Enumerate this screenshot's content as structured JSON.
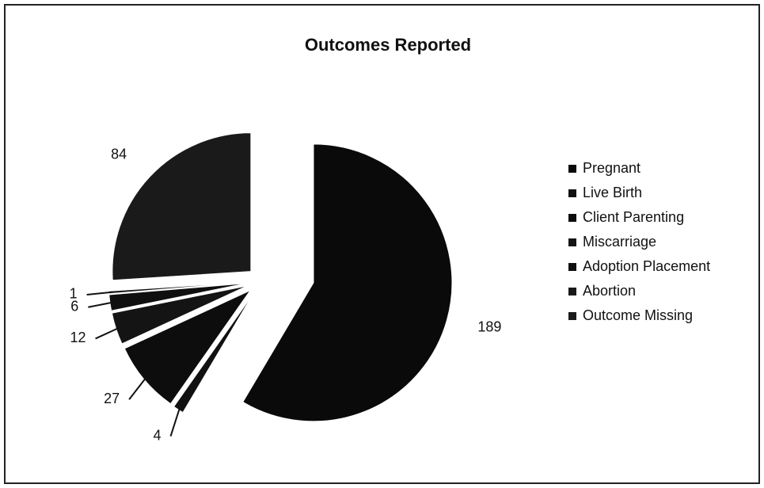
{
  "chart_data": {
    "type": "pie",
    "title": "Outcomes Reported",
    "categories": [
      "Pregnant",
      "Live Birth",
      "Client Parenting",
      "Miscarriage",
      "Adoption Placement",
      "Abortion",
      "Outcome Missing"
    ],
    "values": [
      189,
      4,
      27,
      12,
      6,
      1,
      84
    ],
    "colors": [
      "#0a0a0a",
      "#111111",
      "#0d0d0d",
      "#141414",
      "#0f0f0f",
      "#181818",
      "#1a1a1a"
    ],
    "legend": "right"
  }
}
